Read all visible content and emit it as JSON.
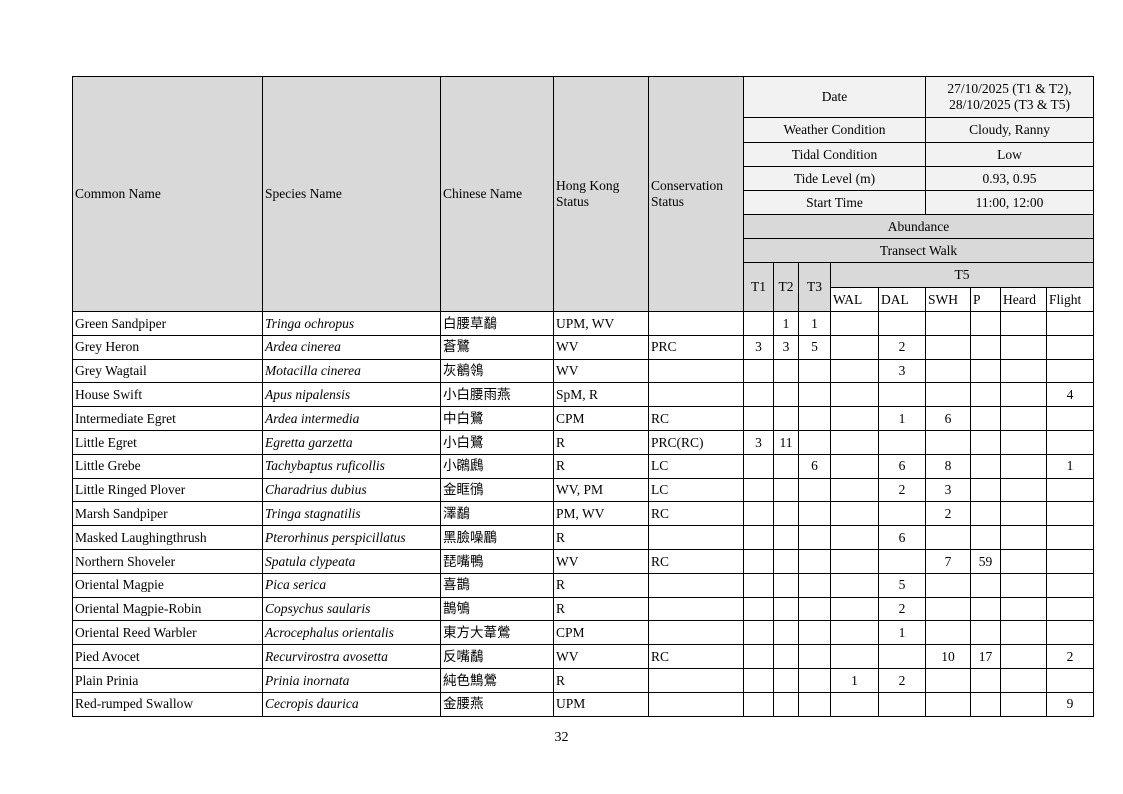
{
  "header": {
    "common_name": "Common Name",
    "species_name": "Species Name",
    "chinese_name": "Chinese Name",
    "hk_status": "Hong Kong Status",
    "conservation_status": "Conservation Status",
    "date_label": "Date",
    "date_value": "27/10/2025 (T1 & T2), 28/10/2025 (T3 & T5)",
    "weather_label": "Weather Condition",
    "weather_value": "Cloudy, Ranny",
    "tidal_label": "Tidal Condition",
    "tidal_value": "Low",
    "tide_level_label": "Tide Level (m)",
    "tide_level_value": "0.93, 0.95",
    "start_time_label": "Start Time",
    "start_time_value": "11:00, 12:00",
    "abundance": "Abundance",
    "transect_walk": "Transect Walk",
    "t1": "T1",
    "t2": "T2",
    "t3": "T3",
    "t5": "T5",
    "t5_sub": [
      "WAL",
      "DAL",
      "SWH",
      "P",
      "Heard",
      "Flight"
    ]
  },
  "rows": [
    {
      "common": "Green Sandpiper",
      "species": "Tringa ochropus",
      "chinese": "白腰草鷸",
      "hk": "UPM, WV",
      "cons": "",
      "counts": [
        "",
        "1",
        "1",
        "",
        "",
        "",
        "",
        "",
        ""
      ]
    },
    {
      "common": "Grey Heron",
      "species": "Ardea cinerea",
      "chinese": "蒼鷺",
      "hk": "WV",
      "cons": "PRC",
      "counts": [
        "3",
        "3",
        "5",
        "",
        "2",
        "",
        "",
        "",
        ""
      ]
    },
    {
      "common": "Grey Wagtail",
      "species": "Motacilla cinerea",
      "chinese": "灰鶺鴒",
      "hk": "WV",
      "cons": "",
      "counts": [
        "",
        "",
        "",
        "",
        "3",
        "",
        "",
        "",
        ""
      ]
    },
    {
      "common": "House Swift",
      "species": "Apus nipalensis",
      "chinese": "小白腰雨燕",
      "hk": "SpM, R",
      "cons": "",
      "counts": [
        "",
        "",
        "",
        "",
        "",
        "",
        "",
        "",
        "4"
      ]
    },
    {
      "common": "Intermediate Egret",
      "species": "Ardea intermedia",
      "chinese": "中白鷺",
      "hk": "CPM",
      "cons": "RC",
      "counts": [
        "",
        "",
        "",
        "",
        "1",
        "6",
        "",
        "",
        ""
      ]
    },
    {
      "common": "Little Egret",
      "species": "Egretta garzetta",
      "chinese": "小白鷺",
      "hk": "R",
      "cons": "PRC(RC)",
      "counts": [
        "3",
        "11",
        "",
        "",
        "",
        "",
        "",
        "",
        ""
      ]
    },
    {
      "common": "Little Grebe",
      "species": "Tachybaptus ruficollis",
      "chinese": "小鸊鷉",
      "hk": "R",
      "cons": "LC",
      "counts": [
        "",
        "",
        "6",
        "",
        "6",
        "8",
        "",
        "",
        "1"
      ]
    },
    {
      "common": "Little Ringed Plover",
      "species": "Charadrius dubius",
      "chinese": "金眶鴴",
      "hk": "WV, PM",
      "cons": "LC",
      "counts": [
        "",
        "",
        "",
        "",
        "2",
        "3",
        "",
        "",
        ""
      ]
    },
    {
      "common": "Marsh Sandpiper",
      "species": "Tringa stagnatilis",
      "chinese": "澤鷸",
      "hk": "PM, WV",
      "cons": "RC",
      "counts": [
        "",
        "",
        "",
        "",
        "",
        "2",
        "",
        "",
        ""
      ]
    },
    {
      "common": "Masked Laughingthrush",
      "species": "Pterorhinus perspicillatus",
      "chinese": "黑臉噪鶥",
      "hk": "R",
      "cons": "",
      "counts": [
        "",
        "",
        "",
        "",
        "6",
        "",
        "",
        "",
        ""
      ]
    },
    {
      "common": "Northern Shoveler",
      "species": "Spatula clypeata",
      "chinese": "琵嘴鴨",
      "hk": "WV",
      "cons": "RC",
      "counts": [
        "",
        "",
        "",
        "",
        "",
        "7",
        "59",
        "",
        ""
      ]
    },
    {
      "common": "Oriental Magpie",
      "species": "Pica serica",
      "chinese": "喜鵲",
      "hk": "R",
      "cons": "",
      "counts": [
        "",
        "",
        "",
        "",
        "5",
        "",
        "",
        "",
        ""
      ]
    },
    {
      "common": "Oriental Magpie-Robin",
      "species": "Copsychus saularis",
      "chinese": "鵲鴝",
      "hk": "R",
      "cons": "",
      "counts": [
        "",
        "",
        "",
        "",
        "2",
        "",
        "",
        "",
        ""
      ]
    },
    {
      "common": "Oriental Reed Warbler",
      "species": "Acrocephalus orientalis",
      "chinese": "東方大葦鶯",
      "hk": "CPM",
      "cons": "",
      "counts": [
        "",
        "",
        "",
        "",
        "1",
        "",
        "",
        "",
        ""
      ]
    },
    {
      "common": "Pied Avocet",
      "species": "Recurvirostra avosetta",
      "chinese": "反嘴鷸",
      "hk": "WV",
      "cons": "RC",
      "counts": [
        "",
        "",
        "",
        "",
        "",
        "10",
        "17",
        "",
        "2"
      ]
    },
    {
      "common": "Plain Prinia",
      "species": "Prinia inornata",
      "chinese": "純色鷦鶯",
      "hk": "R",
      "cons": "",
      "counts": [
        "",
        "",
        "",
        "1",
        "2",
        "",
        "",
        "",
        ""
      ]
    },
    {
      "common": "Red-rumped Swallow",
      "species": "Cecropis daurica",
      "chinese": "金腰燕",
      "hk": "UPM",
      "cons": "",
      "counts": [
        "",
        "",
        "",
        "",
        "",
        "",
        "",
        "",
        "9"
      ]
    }
  ],
  "page_number": "32"
}
